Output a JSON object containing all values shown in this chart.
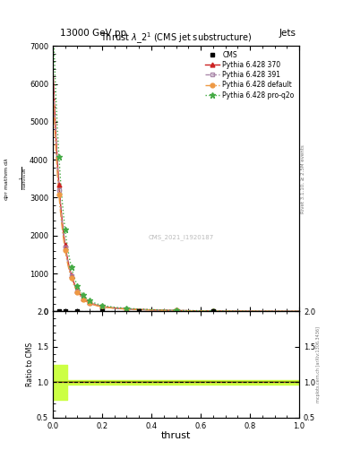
{
  "title_top": "13000 GeV pp",
  "title_right": "Jets",
  "plot_title": "Thrust $\\lambda\\_2^1$ (CMS jet substructure)",
  "xlabel": "thrust",
  "ylabel_right_top": "Rivet 3.1.10, ≥ 2.5M events",
  "ylabel_right_bot": "mcplots.cern.ch [arXiv:1306.3436]",
  "watermark": "CMS_2021_I1920187",
  "ylim_main": [
    0,
    7000
  ],
  "ylim_ratio": [
    0.5,
    2.0
  ],
  "xlim": [
    0.0,
    1.0
  ],
  "color_cms": "#000000",
  "color_p370": "#cc2222",
  "color_p391": "#aa88aa",
  "color_pdef": "#ee9944",
  "color_pproq2o": "#44aa44",
  "ratio_band_color": "#ccff44",
  "ratio_line_color": "#88bb00",
  "bg_color": "#ffffff",
  "x_markers": [
    0.025,
    0.05,
    0.075,
    0.1,
    0.125,
    0.15,
    0.2,
    0.3,
    0.5,
    0.65
  ],
  "scale_p370": 1.0,
  "scale_p391": 0.96,
  "scale_pdef": 0.92,
  "scale_pproq2o": 1.22,
  "peak_scale": 6200,
  "decay1": 28,
  "decay2": 5,
  "amp2": 300,
  "legend_entries": [
    "CMS",
    "Pythia 6.428 370",
    "Pythia 6.428 391",
    "Pythia 6.428 default",
    "Pythia 6.428 pro-q2o"
  ]
}
